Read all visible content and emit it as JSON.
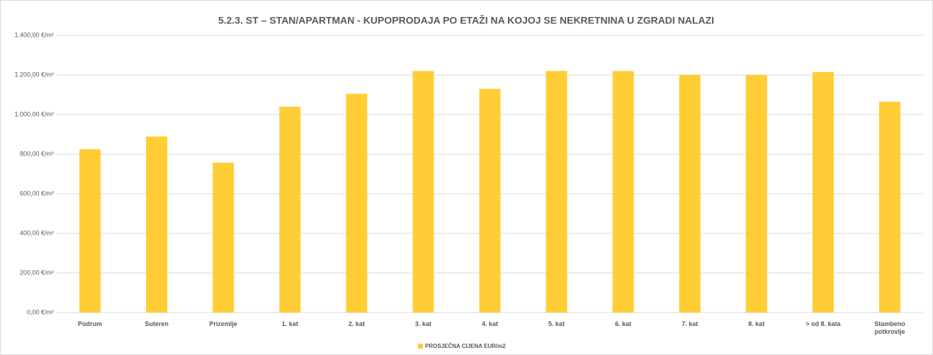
{
  "chart_data": {
    "type": "bar",
    "title": "5.2.3. ST – STAN/APARTMAN - KUPOPRODAJA PO ETAŽI NA KOJOJ SE NEKRETNINA U ZGRADI NALAZI",
    "categories": [
      "Podrum",
      "Suteren",
      "Prizemlje",
      "1. kat",
      "2. kat",
      "3. kat",
      "4. kat",
      "5. kat",
      "6. kat",
      "7. kat",
      "8. kat",
      "> od 8. kata",
      "Stambeno potkrovlje"
    ],
    "series": [
      {
        "name": "PROSJEČNA CIJENA EUR/m2",
        "color": "#FFCD36",
        "values": [
          825,
          889,
          757,
          1040,
          1105,
          1220,
          1130,
          1220,
          1220,
          1200,
          1200,
          1215,
          1065
        ]
      }
    ],
    "ylim": [
      0,
      1400
    ],
    "yticks": [
      {
        "value": 0,
        "label": "0,00 €/m²"
      },
      {
        "value": 200,
        "label": "200,00 €/m²"
      },
      {
        "value": 400,
        "label": "400,00 €/m²"
      },
      {
        "value": 600,
        "label": "600,00 €/m²"
      },
      {
        "value": 800,
        "label": "800,00 €/m²"
      },
      {
        "value": 1000,
        "label": "1.000,00 €/m²"
      },
      {
        "value": 1200,
        "label": "1.200,00 €/m²"
      },
      {
        "value": 1400,
        "label": "1.400,00 €/m²"
      }
    ],
    "grid": true,
    "legend": "bottom"
  }
}
